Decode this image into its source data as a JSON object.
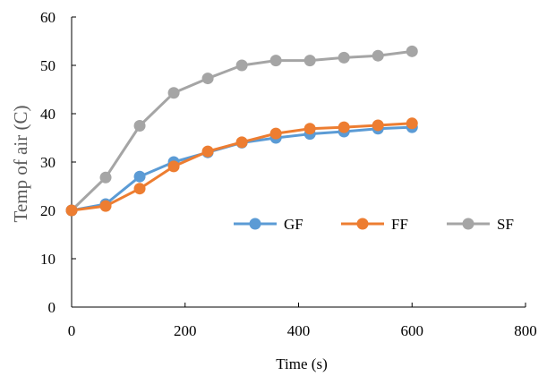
{
  "chart_data": {
    "type": "line",
    "title": "",
    "xlabel": "Time (s)",
    "ylabel": "Temp of air (C)",
    "xlim": [
      0,
      800
    ],
    "ylim": [
      0,
      60
    ],
    "xticks": [
      0,
      200,
      400,
      600,
      800
    ],
    "yticks": [
      0,
      10,
      20,
      30,
      40,
      50,
      60
    ],
    "grid": false,
    "legend_position": "center-right",
    "x": [
      0,
      60,
      120,
      180,
      240,
      300,
      360,
      420,
      480,
      540,
      600
    ],
    "series": [
      {
        "name": "GF",
        "color": "#5B9BD5",
        "values": [
          20,
          21.3,
          27,
          30,
          32,
          34,
          35,
          35.8,
          36.3,
          36.9,
          37.2
        ]
      },
      {
        "name": "FF",
        "color": "#ED7D31",
        "values": [
          20,
          20.9,
          24.5,
          29.1,
          32.2,
          34.1,
          35.9,
          36.9,
          37.2,
          37.6,
          38
        ]
      },
      {
        "name": "SF",
        "color": "#A5A5A5",
        "values": [
          20,
          26.8,
          37.5,
          44.3,
          47.3,
          50,
          51,
          51,
          51.6,
          52,
          52.9
        ]
      }
    ]
  }
}
